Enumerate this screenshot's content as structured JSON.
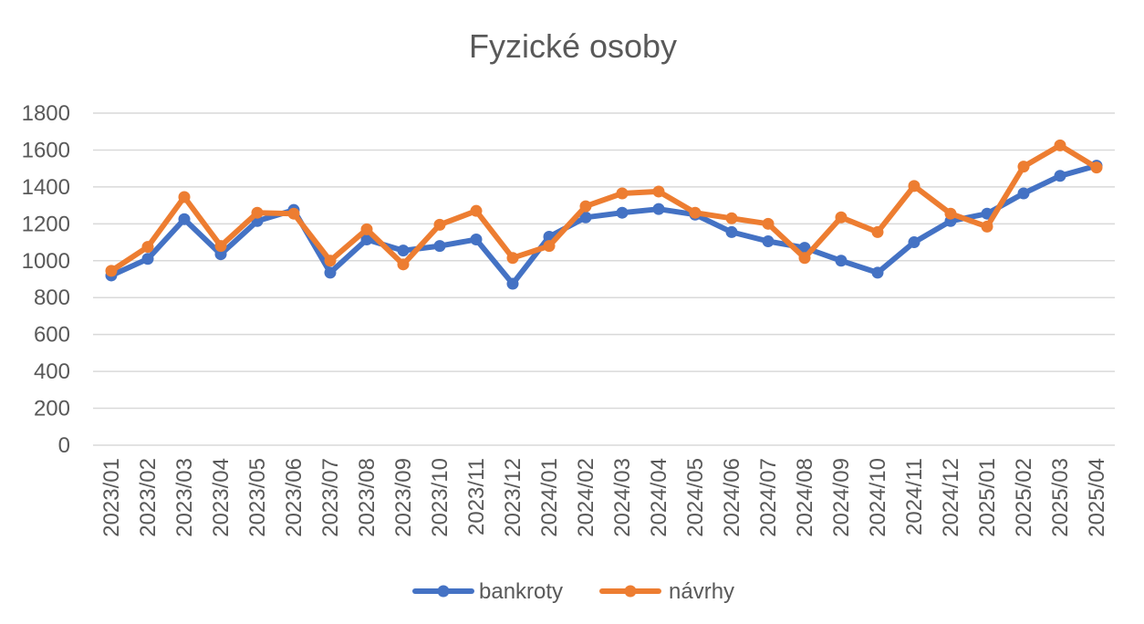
{
  "chart_data": {
    "type": "line",
    "title": "Fyzické osoby",
    "xlabel": "",
    "ylabel": "",
    "ylim": [
      0,
      1800
    ],
    "yticks": [
      0,
      200,
      400,
      600,
      800,
      1000,
      1200,
      1400,
      1600,
      1800
    ],
    "grid": true,
    "legend_position": "bottom",
    "categories": [
      "2023/01",
      "2023/02",
      "2023/03",
      "2023/04",
      "2023/05",
      "2023/06",
      "2023/07",
      "2023/08",
      "2023/09",
      "2023/10",
      "2023/11",
      "2023/12",
      "2024/01",
      "2024/02",
      "2024/03",
      "2024/04",
      "2024/05",
      "2024/06",
      "2024/07",
      "2024/08",
      "2024/09",
      "2024/10",
      "2024/11",
      "2024/12",
      "2025/01",
      "2025/02",
      "2025/03",
      "2025/04"
    ],
    "series": [
      {
        "name": "bankroty",
        "color": "#4472c4",
        "values": [
          920,
          1010,
          1225,
          1035,
          1215,
          1275,
          935,
          1115,
          1055,
          1080,
          1115,
          875,
          1130,
          1235,
          1260,
          1280,
          1250,
          1155,
          1105,
          1070,
          1000,
          935,
          1100,
          1215,
          1255,
          1365,
          1460,
          1515
        ]
      },
      {
        "name": "návrhy",
        "color": "#ed7d31",
        "values": [
          945,
          1075,
          1345,
          1080,
          1260,
          1255,
          1000,
          1170,
          980,
          1195,
          1270,
          1015,
          1080,
          1295,
          1365,
          1375,
          1260,
          1230,
          1200,
          1015,
          1235,
          1155,
          1405,
          1255,
          1185,
          1510,
          1625,
          1505
        ]
      }
    ]
  }
}
